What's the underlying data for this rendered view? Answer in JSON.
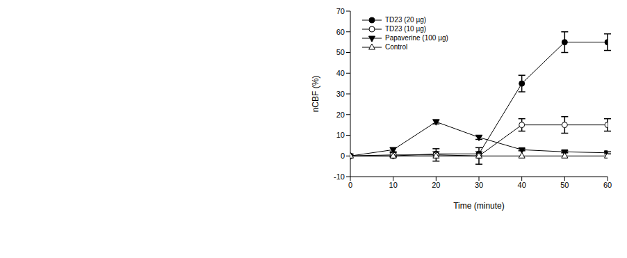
{
  "chart_data": {
    "type": "line",
    "x_label": "Time (minute)",
    "y_label": "nCBF (%)",
    "x": [
      0,
      10,
      20,
      30,
      40,
      50,
      60
    ],
    "xlim": [
      0,
      60
    ],
    "xticks": [
      0,
      10,
      20,
      30,
      40,
      50,
      60
    ],
    "ylim": [
      -10,
      70
    ],
    "yticks": [
      -10,
      0,
      10,
      20,
      30,
      40,
      50,
      60,
      70
    ],
    "grid": false,
    "legend": "upper left",
    "series": [
      {
        "name": "TD23 (20 µg)",
        "color": "#000000",
        "marker": "circle",
        "line_style": "solid",
        "values": [
          0,
          0,
          1,
          1,
          35,
          55,
          55
        ],
        "errors": [
          0,
          0.5,
          1,
          1,
          4,
          5,
          4
        ]
      },
      {
        "name": "TD23 (10 µg)",
        "color": "#000000",
        "marker": "circle_open",
        "line_style": "solid",
        "values": [
          0,
          0.5,
          0.5,
          0,
          15,
          15,
          15
        ],
        "errors": [
          0,
          1,
          3,
          4,
          3,
          4,
          3
        ]
      },
      {
        "name": "Papaverine (100 µg)",
        "color": "#000000",
        "marker": "triangle_down",
        "line_style": "solid",
        "values": [
          0,
          3,
          16.5,
          9,
          3,
          2,
          1.5
        ],
        "errors": [
          0,
          1,
          1,
          1,
          0.5,
          0.5,
          0.5
        ]
      },
      {
        "name": "Control",
        "color": "#000000",
        "marker": "triangle_up_open",
        "line_style": "solid",
        "values": [
          0,
          0,
          0,
          0,
          0,
          0,
          0
        ]
      }
    ]
  }
}
